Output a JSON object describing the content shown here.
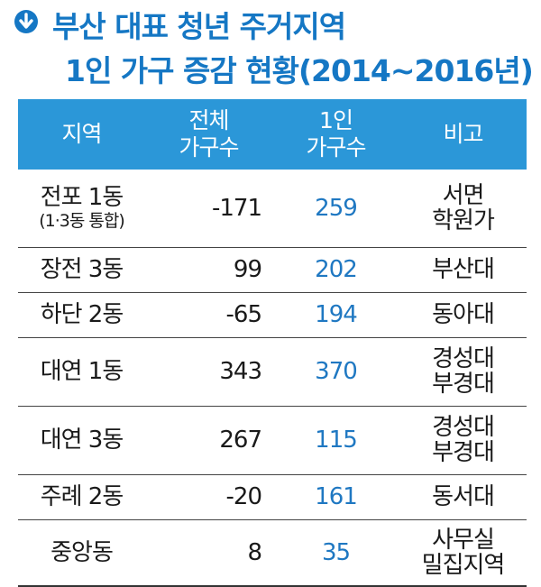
{
  "title": {
    "line1": "부산 대표 청년 주거지역",
    "line2": "1인 가구 증감 현황(2014~2016년)",
    "icon": "arrow-down-circle-icon",
    "accent_color": "#1577c4"
  },
  "table": {
    "header_color": "#2b97d8",
    "single_value_color": "#1f78c2",
    "headers": {
      "region": "지역",
      "total_line1": "전체",
      "total_line2": "가구수",
      "single_line1": "1인",
      "single_line2": "가구수",
      "note": "비고"
    },
    "rows": [
      {
        "region": "전포 1동",
        "region_sub": "(1·3동 통합)",
        "total": "-171",
        "single": "259",
        "note1": "서면",
        "note2": "학원가"
      },
      {
        "region": "장전 3동",
        "region_sub": "",
        "total": "99",
        "single": "202",
        "note1": "부산대",
        "note2": ""
      },
      {
        "region": "하단 2동",
        "region_sub": "",
        "total": "-65",
        "single": "194",
        "note1": "동아대",
        "note2": ""
      },
      {
        "region": "대연 1동",
        "region_sub": "",
        "total": "343",
        "single": "370",
        "note1": "경성대",
        "note2": "부경대"
      },
      {
        "region": "대연 3동",
        "region_sub": "",
        "total": "267",
        "single": "115",
        "note1": "경성대",
        "note2": "부경대"
      },
      {
        "region": "주례 2동",
        "region_sub": "",
        "total": "-20",
        "single": "161",
        "note1": "동서대",
        "note2": ""
      },
      {
        "region": "중앙동",
        "region_sub": "",
        "total": "8",
        "single": "35",
        "note1": "사무실",
        "note2": "밀집지역"
      }
    ]
  }
}
